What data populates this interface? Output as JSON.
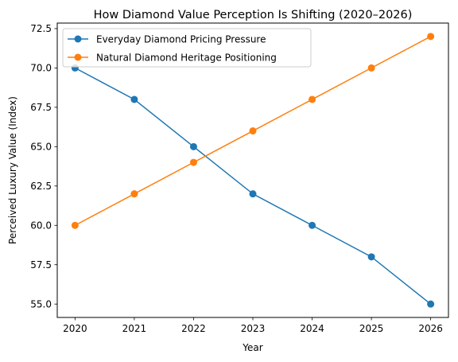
{
  "chart_data": {
    "type": "line",
    "title": "How Diamond Value Perception Is Shifting (2020–2026)",
    "xlabel": "Year",
    "ylabel": "Perceived Luxury Value (Index)",
    "x": [
      2020,
      2021,
      2022,
      2023,
      2024,
      2025,
      2026
    ],
    "x_tick_labels": [
      "2020",
      "2021",
      "2022",
      "2023",
      "2024",
      "2025",
      "2026"
    ],
    "y_ticks": [
      55.0,
      57.5,
      60.0,
      62.5,
      65.0,
      67.5,
      70.0,
      72.5
    ],
    "y_tick_labels": [
      "55.0",
      "57.5",
      "60.0",
      "62.5",
      "65.0",
      "67.5",
      "70.0",
      "72.5"
    ],
    "xlim": [
      2019.7,
      2026.3
    ],
    "ylim": [
      54.15,
      72.85
    ],
    "grid": false,
    "legend_position": "top-left",
    "series": [
      {
        "name": "Everyday Diamond Pricing Pressure",
        "values": [
          70,
          68,
          65,
          62,
          60,
          58,
          55
        ],
        "color": "#1f77b4",
        "marker": "circle"
      },
      {
        "name": "Natural Diamond Heritage Positioning",
        "values": [
          60,
          62,
          64,
          66,
          68,
          70,
          72
        ],
        "color": "#ff7f0e",
        "marker": "circle"
      }
    ]
  }
}
